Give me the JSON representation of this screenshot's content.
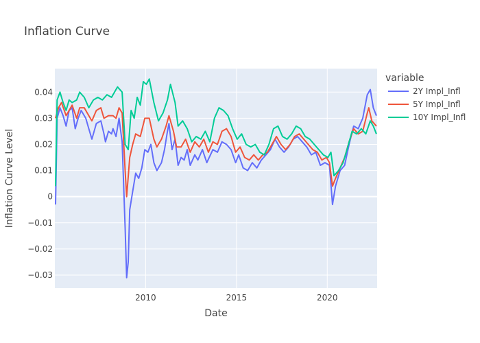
{
  "chart_data": {
    "type": "line",
    "title": "Inflation Curve",
    "xlabel": "Date",
    "ylabel": "Inflation Curve Level",
    "xlim": [
      "2005-01-01",
      "2022-09-30"
    ],
    "ylim": [
      -0.035,
      0.049
    ],
    "x_ticks": [
      {
        "value": "2010-01-01",
        "label": "2010"
      },
      {
        "value": "2015-01-01",
        "label": "2015"
      },
      {
        "value": "2020-01-01",
        "label": "2020"
      }
    ],
    "y_ticks": [
      {
        "value": -0.03,
        "label": "−0.03"
      },
      {
        "value": -0.02,
        "label": "−0.02"
      },
      {
        "value": -0.01,
        "label": "−0.01"
      },
      {
        "value": 0,
        "label": "0"
      },
      {
        "value": 0.01,
        "label": "0.01"
      },
      {
        "value": 0.02,
        "label": "0.02"
      },
      {
        "value": 0.03,
        "label": "0.03"
      },
      {
        "value": 0.04,
        "label": "0.04"
      }
    ],
    "grid": true,
    "legend": {
      "title": "variable",
      "position": "right"
    },
    "series": [
      {
        "name": "2Y Impl_Infl",
        "color": "#636efa",
        "points": [
          [
            "2005-01",
            -0.003
          ],
          [
            "2005-02",
            0.03
          ],
          [
            "2005-04",
            0.034
          ],
          [
            "2005-06",
            0.031
          ],
          [
            "2005-08",
            0.027
          ],
          [
            "2005-10",
            0.033
          ],
          [
            "2005-12",
            0.034
          ],
          [
            "2006-02",
            0.026
          ],
          [
            "2006-04",
            0.03
          ],
          [
            "2006-06",
            0.033
          ],
          [
            "2006-09",
            0.03
          ],
          [
            "2006-11",
            0.026
          ],
          [
            "2007-01",
            0.022
          ],
          [
            "2007-04",
            0.028
          ],
          [
            "2007-07",
            0.029
          ],
          [
            "2007-09",
            0.024
          ],
          [
            "2007-10",
            0.021
          ],
          [
            "2007-12",
            0.025
          ],
          [
            "2008-02",
            0.024
          ],
          [
            "2008-03",
            0.026
          ],
          [
            "2008-05",
            0.023
          ],
          [
            "2008-07",
            0.03
          ],
          [
            "2008-09",
            0.021
          ],
          [
            "2008-11",
            -0.012
          ],
          [
            "2008-12",
            -0.031
          ],
          [
            "2009-01",
            -0.025
          ],
          [
            "2009-02",
            -0.005
          ],
          [
            "2009-04",
            0.002
          ],
          [
            "2009-06",
            0.009
          ],
          [
            "2009-08",
            0.007
          ],
          [
            "2009-10",
            0.011
          ],
          [
            "2009-12",
            0.018
          ],
          [
            "2010-02",
            0.017
          ],
          [
            "2010-04",
            0.02
          ],
          [
            "2010-06",
            0.013
          ],
          [
            "2010-08",
            0.01
          ],
          [
            "2010-11",
            0.013
          ],
          [
            "2011-01",
            0.018
          ],
          [
            "2011-03",
            0.025
          ],
          [
            "2011-04",
            0.028
          ],
          [
            "2011-06",
            0.018
          ],
          [
            "2011-08",
            0.022
          ],
          [
            "2011-10",
            0.012
          ],
          [
            "2011-12",
            0.015
          ],
          [
            "2012-02",
            0.014
          ],
          [
            "2012-04",
            0.018
          ],
          [
            "2012-06",
            0.012
          ],
          [
            "2012-09",
            0.016
          ],
          [
            "2012-11",
            0.014
          ],
          [
            "2013-02",
            0.018
          ],
          [
            "2013-05",
            0.013
          ],
          [
            "2013-09",
            0.018
          ],
          [
            "2013-12",
            0.017
          ],
          [
            "2014-03",
            0.021
          ],
          [
            "2014-06",
            0.02
          ],
          [
            "2014-09",
            0.018
          ],
          [
            "2014-12",
            0.013
          ],
          [
            "2015-02",
            0.016
          ],
          [
            "2015-05",
            0.011
          ],
          [
            "2015-08",
            0.01
          ],
          [
            "2015-11",
            0.013
          ],
          [
            "2016-02",
            0.011
          ],
          [
            "2016-05",
            0.014
          ],
          [
            "2016-08",
            0.016
          ],
          [
            "2016-11",
            0.018
          ],
          [
            "2017-02",
            0.022
          ],
          [
            "2017-05",
            0.019
          ],
          [
            "2017-08",
            0.017
          ],
          [
            "2017-11",
            0.019
          ],
          [
            "2018-02",
            0.022
          ],
          [
            "2018-05",
            0.023
          ],
          [
            "2018-08",
            0.021
          ],
          [
            "2018-11",
            0.019
          ],
          [
            "2019-02",
            0.016
          ],
          [
            "2019-05",
            0.017
          ],
          [
            "2019-08",
            0.012
          ],
          [
            "2019-11",
            0.013
          ],
          [
            "2020-02",
            0.012
          ],
          [
            "2020-04",
            -0.003
          ],
          [
            "2020-06",
            0.004
          ],
          [
            "2020-09",
            0.01
          ],
          [
            "2020-12",
            0.012
          ],
          [
            "2021-03",
            0.02
          ],
          [
            "2021-06",
            0.027
          ],
          [
            "2021-09",
            0.026
          ],
          [
            "2021-12",
            0.03
          ],
          [
            "2022-03",
            0.039
          ],
          [
            "2022-05",
            0.041
          ],
          [
            "2022-07",
            0.034
          ],
          [
            "2022-09",
            0.031
          ]
        ]
      },
      {
        "name": "5Y Impl_Infl",
        "color": "#ef553b",
        "points": [
          [
            "2005-01",
            0.03
          ],
          [
            "2005-03",
            0.034
          ],
          [
            "2005-05",
            0.036
          ],
          [
            "2005-08",
            0.031
          ],
          [
            "2005-10",
            0.033
          ],
          [
            "2005-12",
            0.035
          ],
          [
            "2006-03",
            0.03
          ],
          [
            "2006-05",
            0.034
          ],
          [
            "2006-08",
            0.034
          ],
          [
            "2006-11",
            0.031
          ],
          [
            "2007-01",
            0.029
          ],
          [
            "2007-04",
            0.033
          ],
          [
            "2007-07",
            0.034
          ],
          [
            "2007-09",
            0.03
          ],
          [
            "2007-12",
            0.031
          ],
          [
            "2008-03",
            0.031
          ],
          [
            "2008-05",
            0.03
          ],
          [
            "2008-07",
            0.034
          ],
          [
            "2008-09",
            0.032
          ],
          [
            "2008-11",
            0.01
          ],
          [
            "2008-12",
            0.0
          ],
          [
            "2009-02",
            0.015
          ],
          [
            "2009-04",
            0.02
          ],
          [
            "2009-06",
            0.024
          ],
          [
            "2009-09",
            0.023
          ],
          [
            "2009-12",
            0.03
          ],
          [
            "2010-03",
            0.03
          ],
          [
            "2010-06",
            0.022
          ],
          [
            "2010-08",
            0.019
          ],
          [
            "2010-11",
            0.022
          ],
          [
            "2011-02",
            0.027
          ],
          [
            "2011-04",
            0.031
          ],
          [
            "2011-07",
            0.025
          ],
          [
            "2011-09",
            0.019
          ],
          [
            "2011-12",
            0.019
          ],
          [
            "2012-03",
            0.022
          ],
          [
            "2012-06",
            0.017
          ],
          [
            "2012-09",
            0.021
          ],
          [
            "2012-12",
            0.019
          ],
          [
            "2013-03",
            0.022
          ],
          [
            "2013-06",
            0.017
          ],
          [
            "2013-09",
            0.021
          ],
          [
            "2013-12",
            0.02
          ],
          [
            "2014-03",
            0.025
          ],
          [
            "2014-06",
            0.026
          ],
          [
            "2014-09",
            0.023
          ],
          [
            "2014-12",
            0.017
          ],
          [
            "2015-03",
            0.019
          ],
          [
            "2015-06",
            0.015
          ],
          [
            "2015-09",
            0.014
          ],
          [
            "2015-12",
            0.016
          ],
          [
            "2016-03",
            0.014
          ],
          [
            "2016-06",
            0.016
          ],
          [
            "2016-09",
            0.017
          ],
          [
            "2016-12",
            0.02
          ],
          [
            "2017-03",
            0.023
          ],
          [
            "2017-06",
            0.02
          ],
          [
            "2017-09",
            0.018
          ],
          [
            "2017-12",
            0.02
          ],
          [
            "2018-03",
            0.023
          ],
          [
            "2018-06",
            0.024
          ],
          [
            "2018-09",
            0.022
          ],
          [
            "2018-12",
            0.02
          ],
          [
            "2019-03",
            0.018
          ],
          [
            "2019-06",
            0.017
          ],
          [
            "2019-09",
            0.014
          ],
          [
            "2019-12",
            0.015
          ],
          [
            "2020-02",
            0.013
          ],
          [
            "2020-04",
            0.004
          ],
          [
            "2020-06",
            0.007
          ],
          [
            "2020-09",
            0.011
          ],
          [
            "2020-12",
            0.015
          ],
          [
            "2021-03",
            0.021
          ],
          [
            "2021-06",
            0.026
          ],
          [
            "2021-09",
            0.024
          ],
          [
            "2021-12",
            0.025
          ],
          [
            "2022-03",
            0.032
          ],
          [
            "2022-04",
            0.034
          ],
          [
            "2022-06",
            0.029
          ],
          [
            "2022-09",
            0.027
          ]
        ]
      },
      {
        "name": "10Y Impl_Infl",
        "color": "#00cc96",
        "points": [
          [
            "2005-01",
            0.004
          ],
          [
            "2005-02",
            0.037
          ],
          [
            "2005-04",
            0.04
          ],
          [
            "2005-06",
            0.036
          ],
          [
            "2005-08",
            0.033
          ],
          [
            "2005-10",
            0.037
          ],
          [
            "2005-12",
            0.036
          ],
          [
            "2006-03",
            0.037
          ],
          [
            "2006-05",
            0.04
          ],
          [
            "2006-08",
            0.038
          ],
          [
            "2006-11",
            0.034
          ],
          [
            "2007-02",
            0.037
          ],
          [
            "2007-05",
            0.038
          ],
          [
            "2007-08",
            0.037
          ],
          [
            "2007-11",
            0.039
          ],
          [
            "2008-02",
            0.038
          ],
          [
            "2008-04",
            0.04
          ],
          [
            "2008-06",
            0.042
          ],
          [
            "2008-09",
            0.04
          ],
          [
            "2008-11",
            0.02
          ],
          [
            "2009-01",
            0.018
          ],
          [
            "2009-03",
            0.033
          ],
          [
            "2009-05",
            0.03
          ],
          [
            "2009-07",
            0.038
          ],
          [
            "2009-09",
            0.035
          ],
          [
            "2009-11",
            0.044
          ],
          [
            "2010-01",
            0.043
          ],
          [
            "2010-03",
            0.045
          ],
          [
            "2010-06",
            0.036
          ],
          [
            "2010-09",
            0.029
          ],
          [
            "2010-12",
            0.032
          ],
          [
            "2011-03",
            0.037
          ],
          [
            "2011-05",
            0.043
          ],
          [
            "2011-08",
            0.036
          ],
          [
            "2011-10",
            0.027
          ],
          [
            "2012-01",
            0.029
          ],
          [
            "2012-04",
            0.026
          ],
          [
            "2012-07",
            0.021
          ],
          [
            "2012-10",
            0.023
          ],
          [
            "2013-01",
            0.022
          ],
          [
            "2013-04",
            0.025
          ],
          [
            "2013-07",
            0.021
          ],
          [
            "2013-10",
            0.03
          ],
          [
            "2014-01",
            0.034
          ],
          [
            "2014-04",
            0.033
          ],
          [
            "2014-07",
            0.031
          ],
          [
            "2014-10",
            0.026
          ],
          [
            "2015-01",
            0.022
          ],
          [
            "2015-04",
            0.024
          ],
          [
            "2015-07",
            0.02
          ],
          [
            "2015-10",
            0.019
          ],
          [
            "2016-01",
            0.02
          ],
          [
            "2016-04",
            0.017
          ],
          [
            "2016-07",
            0.016
          ],
          [
            "2016-10",
            0.02
          ],
          [
            "2017-01",
            0.026
          ],
          [
            "2017-04",
            0.027
          ],
          [
            "2017-07",
            0.023
          ],
          [
            "2017-10",
            0.022
          ],
          [
            "2018-01",
            0.024
          ],
          [
            "2018-04",
            0.027
          ],
          [
            "2018-07",
            0.026
          ],
          [
            "2018-10",
            0.023
          ],
          [
            "2019-01",
            0.022
          ],
          [
            "2019-04",
            0.02
          ],
          [
            "2019-07",
            0.018
          ],
          [
            "2019-10",
            0.016
          ],
          [
            "2020-01",
            0.015
          ],
          [
            "2020-03",
            0.017
          ],
          [
            "2020-05",
            0.008
          ],
          [
            "2020-08",
            0.01
          ],
          [
            "2020-11",
            0.013
          ],
          [
            "2021-02",
            0.019
          ],
          [
            "2021-05",
            0.025
          ],
          [
            "2021-08",
            0.024
          ],
          [
            "2021-11",
            0.026
          ],
          [
            "2022-02",
            0.024
          ],
          [
            "2022-05",
            0.029
          ],
          [
            "2022-07",
            0.027
          ],
          [
            "2022-09",
            0.024
          ]
        ]
      }
    ]
  }
}
